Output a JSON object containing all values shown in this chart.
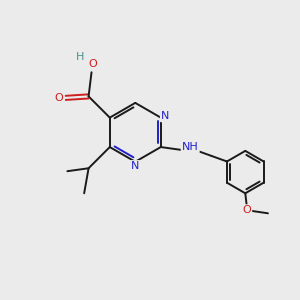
{
  "bg_color": "#ebebeb",
  "bond_color": "#1a1a1a",
  "N_color": "#2020cc",
  "O_color": "#cc2020",
  "H_color": "#4a9090",
  "lw": 1.4,
  "fs": 7.5,
  "xlim": [
    0,
    10
  ],
  "ylim": [
    0,
    10
  ]
}
